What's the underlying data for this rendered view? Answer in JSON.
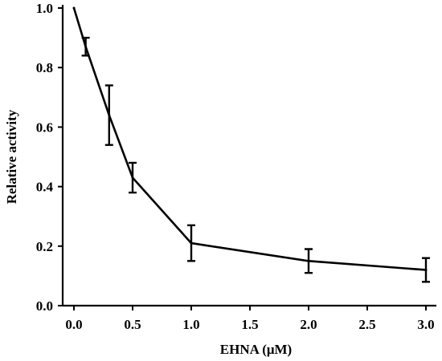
{
  "chart_data": {
    "type": "line",
    "title": "",
    "xlabel": "EHNA (μM)",
    "ylabel": "Relative activity",
    "xlim": [
      0,
      3
    ],
    "ylim": [
      0,
      1
    ],
    "x_ticks": [
      "0.0",
      "0.5",
      "1.0",
      "1.5",
      "2.0",
      "2.5",
      "3.0"
    ],
    "x_tick_values": [
      0,
      0.5,
      1.0,
      1.5,
      2.0,
      2.5,
      3.0
    ],
    "y_ticks": [
      "0.0",
      "0.2",
      "0.4",
      "0.6",
      "0.8",
      "1.0"
    ],
    "y_tick_values": [
      0,
      0.2,
      0.4,
      0.6,
      0.8,
      1.0
    ],
    "grid": false,
    "series": [
      {
        "x": [
          0,
          0.1,
          0.3,
          0.5,
          1.0,
          2.0,
          3.0
        ],
        "y": [
          1.0,
          0.87,
          0.64,
          0.43,
          0.21,
          0.15,
          0.12
        ],
        "error": [
          0,
          0.03,
          0.1,
          0.05,
          0.06,
          0.04,
          0.04
        ],
        "color": "#000000"
      }
    ]
  }
}
